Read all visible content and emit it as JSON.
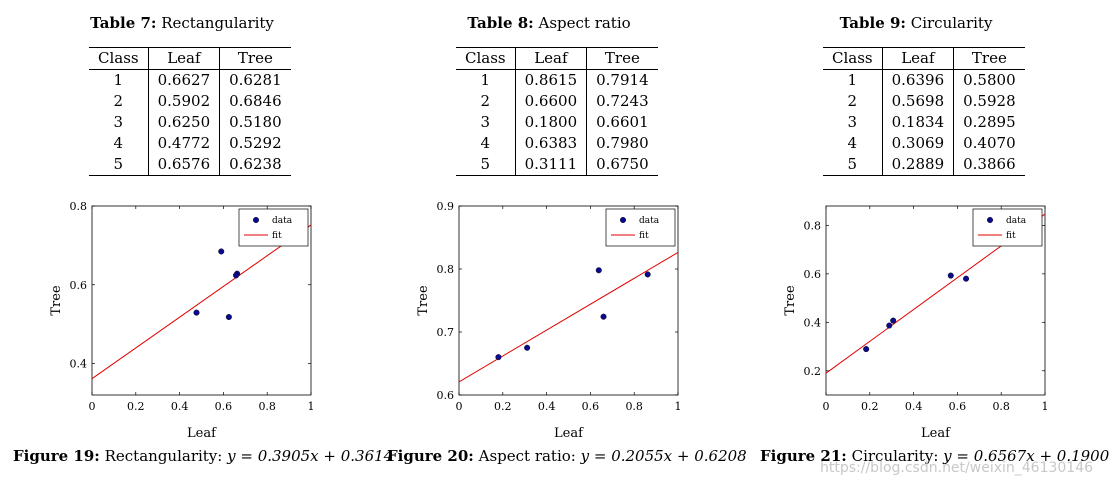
{
  "panels": [
    {
      "table_number": "Table 7:",
      "table_title": "Rectangularity",
      "headers": [
        "Class",
        "Leaf",
        "Tree"
      ],
      "rows": [
        [
          "1",
          "0.6627",
          "0.6281"
        ],
        [
          "2",
          "0.5902",
          "0.6846"
        ],
        [
          "3",
          "0.6250",
          "0.5180"
        ],
        [
          "4",
          "0.4772",
          "0.5292"
        ],
        [
          "5",
          "0.6576",
          "0.6238"
        ]
      ],
      "figure_number": "Figure 19:",
      "figure_caption": "Rectangularity: ",
      "equation": "y = 0.3905x + 0.3614"
    },
    {
      "table_number": "Table 8:",
      "table_title": "Aspect ratio",
      "headers": [
        "Class",
        "Leaf",
        "Tree"
      ],
      "rows": [
        [
          "1",
          "0.8615",
          "0.7914"
        ],
        [
          "2",
          "0.6600",
          "0.7243"
        ],
        [
          "3",
          "0.1800",
          "0.6601"
        ],
        [
          "4",
          "0.6383",
          "0.7980"
        ],
        [
          "5",
          "0.3111",
          "0.6750"
        ]
      ],
      "figure_number": "Figure 20:",
      "figure_caption": "Aspect ratio: ",
      "equation": "y = 0.2055x + 0.6208"
    },
    {
      "table_number": "Table 9:",
      "table_title": "Circularity",
      "headers": [
        "Class",
        "Leaf",
        "Tree"
      ],
      "rows": [
        [
          "1",
          "0.6396",
          "0.5800"
        ],
        [
          "2",
          "0.5698",
          "0.5928"
        ],
        [
          "3",
          "0.1834",
          "0.2895"
        ],
        [
          "4",
          "0.3069",
          "0.4070"
        ],
        [
          "5",
          "0.2889",
          "0.3866"
        ]
      ],
      "figure_number": "Figure 21:",
      "figure_caption": "Circularity: ",
      "equation": "y = 0.6567x + 0.1900"
    }
  ],
  "chart_data": [
    {
      "type": "scatter",
      "title": "",
      "xlabel": "Leaf",
      "ylabel": "Tree",
      "xlim": [
        0,
        1
      ],
      "ylim": [
        0.32,
        0.8
      ],
      "xticks": [
        "0",
        "0.2",
        "0.4",
        "0.6",
        "0.8",
        "1"
      ],
      "xtick_values": [
        0,
        0.2,
        0.4,
        0.6,
        0.8,
        1
      ],
      "yticks": [
        "0.4",
        "0.6",
        "0.8"
      ],
      "ytick_values": [
        0.4,
        0.6,
        0.8
      ],
      "points": [
        [
          0.6627,
          0.6281
        ],
        [
          0.5902,
          0.6846
        ],
        [
          0.625,
          0.518
        ],
        [
          0.4772,
          0.5292
        ],
        [
          0.6576,
          0.6238
        ]
      ],
      "fit": {
        "slope": 0.3905,
        "intercept": 0.3614
      },
      "legend": [
        "data",
        "fit"
      ],
      "legend_position": "top-right",
      "colors": {
        "data": "#0a0a8c",
        "fit": "#e00000"
      }
    },
    {
      "type": "scatter",
      "title": "",
      "xlabel": "Leaf",
      "ylabel": "Tree",
      "xlim": [
        0,
        1
      ],
      "ylim": [
        0.6,
        0.9
      ],
      "xticks": [
        "0",
        "0.2",
        "0.4",
        "0.6",
        "0.8",
        "1"
      ],
      "xtick_values": [
        0,
        0.2,
        0.4,
        0.6,
        0.8,
        1
      ],
      "yticks": [
        "0.6",
        "0.7",
        "0.8",
        "0.9"
      ],
      "ytick_values": [
        0.6,
        0.7,
        0.8,
        0.9
      ],
      "points": [
        [
          0.8615,
          0.7914
        ],
        [
          0.66,
          0.7243
        ],
        [
          0.18,
          0.6601
        ],
        [
          0.6383,
          0.798
        ],
        [
          0.3111,
          0.675
        ]
      ],
      "fit": {
        "slope": 0.2055,
        "intercept": 0.6208
      },
      "legend": [
        "data",
        "fit"
      ],
      "legend_position": "top-right",
      "colors": {
        "data": "#0a0a8c",
        "fit": "#e00000"
      }
    },
    {
      "type": "scatter",
      "title": "",
      "xlabel": "Leaf",
      "ylabel": "Tree",
      "xlim": [
        0,
        1
      ],
      "ylim": [
        0.1,
        0.88
      ],
      "xticks": [
        "0",
        "0.2",
        "0.4",
        "0.6",
        "0.8",
        "1"
      ],
      "xtick_values": [
        0,
        0.2,
        0.4,
        0.6,
        0.8,
        1
      ],
      "yticks": [
        "0.2",
        "0.4",
        "0.6",
        "0.8"
      ],
      "ytick_values": [
        0.2,
        0.4,
        0.6,
        0.8
      ],
      "points": [
        [
          0.6396,
          0.58
        ],
        [
          0.5698,
          0.5928
        ],
        [
          0.1834,
          0.2895
        ],
        [
          0.3069,
          0.407
        ],
        [
          0.2889,
          0.3866
        ]
      ],
      "fit": {
        "slope": 0.6567,
        "intercept": 0.19
      },
      "legend": [
        "data",
        "fit"
      ],
      "legend_position": "top-right",
      "colors": {
        "data": "#0a0a8c",
        "fit": "#e00000"
      }
    }
  ],
  "watermark": "https://blog.csdn.net/weixin_46130146"
}
